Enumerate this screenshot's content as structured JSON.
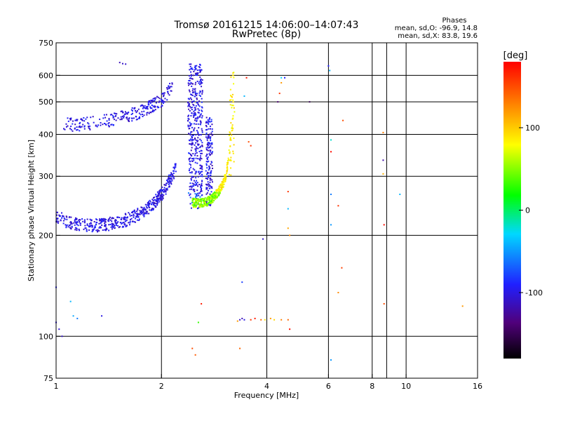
{
  "chart_data": {
    "type": "scatter",
    "title": "Tromsø 20161215 14:06:00–14:07:43",
    "subtitle": "RwPretec (8p)",
    "xlabel": "Frequency [MHz]",
    "ylabel": "Stationary phase Virtual Height [km]",
    "x_scale": "log",
    "y_scale": "log",
    "xlim": [
      1,
      16
    ],
    "ylim": [
      75,
      750
    ],
    "x_ticks": [
      "1",
      "2",
      "4",
      "6",
      "8",
      "10",
      "16"
    ],
    "y_ticks": [
      "75",
      "100",
      "200",
      "300",
      "400",
      "500",
      "600",
      "750"
    ],
    "x_grid": [
      1,
      2,
      4,
      6,
      8,
      10,
      16
    ],
    "y_grid": [
      200,
      300,
      400,
      500,
      600
    ],
    "grid": true,
    "info": {
      "title": "Phases",
      "line1": "mean, sd,O: -96.9, 14.8",
      "line2": "mean, sd,X:  83.8, 19.6"
    },
    "colorbar": {
      "label": "[deg]",
      "range": [
        -180,
        180
      ],
      "ticks": [
        {
          "value": 100,
          "label": "100"
        },
        {
          "value": 0,
          "label": "0"
        },
        {
          "value": -100,
          "label": "-100"
        }
      ]
    },
    "o_trace_lower": [
      [
        1.0,
        230
      ],
      [
        1.05,
        222
      ],
      [
        1.1,
        218
      ],
      [
        1.2,
        215
      ],
      [
        1.3,
        214
      ],
      [
        1.4,
        216
      ],
      [
        1.5,
        219
      ],
      [
        1.6,
        223
      ],
      [
        1.7,
        230
      ],
      [
        1.8,
        238
      ],
      [
        1.9,
        250
      ],
      [
        2.0,
        265
      ],
      [
        2.05,
        275
      ],
      [
        2.1,
        290
      ],
      [
        2.15,
        300
      ],
      [
        2.2,
        320
      ]
    ],
    "o_trace_upper": [
      [
        1.05,
        430
      ],
      [
        1.1,
        428
      ],
      [
        1.2,
        430
      ],
      [
        1.3,
        435
      ],
      [
        1.4,
        440
      ],
      [
        1.5,
        447
      ],
      [
        1.6,
        455
      ],
      [
        1.7,
        463
      ],
      [
        1.8,
        475
      ],
      [
        1.9,
        490
      ],
      [
        2.0,
        505
      ],
      [
        2.05,
        520
      ],
      [
        2.1,
        540
      ],
      [
        2.15,
        565
      ]
    ],
    "o_cusp": {
      "f_min": 2.38,
      "f_max": 2.62,
      "h_min": 240,
      "h_max": 650
    },
    "x_trace": [
      [
        2.45,
        250
      ],
      [
        2.6,
        250
      ],
      [
        2.7,
        252
      ],
      [
        2.8,
        258
      ],
      [
        2.9,
        268
      ],
      [
        3.0,
        285
      ],
      [
        3.05,
        300
      ],
      [
        3.1,
        330
      ],
      [
        3.15,
        380
      ],
      [
        3.2,
        450
      ],
      [
        3.22,
        520
      ],
      [
        3.22,
        600
      ]
    ],
    "clusters": [
      {
        "f": 1.55,
        "h": 650,
        "phase": -110
      },
      {
        "f": 1.52,
        "h": 655,
        "phase": -115
      },
      {
        "f": 1.58,
        "h": 648,
        "phase": -108
      },
      {
        "f": 1.0,
        "h": 140,
        "phase": -90
      },
      {
        "f": 1.0,
        "h": 110,
        "phase": -100
      },
      {
        "f": 1.02,
        "h": 105,
        "phase": -105
      },
      {
        "f": 1.04,
        "h": 100,
        "phase": -110
      },
      {
        "f": 1.1,
        "h": 127,
        "phase": -40
      },
      {
        "f": 1.12,
        "h": 115,
        "phase": -45
      },
      {
        "f": 1.15,
        "h": 113,
        "phase": -60
      },
      {
        "f": 1.35,
        "h": 115,
        "phase": -100
      },
      {
        "f": 2.6,
        "h": 125,
        "phase": 170
      },
      {
        "f": 2.55,
        "h": 110,
        "phase": 30
      },
      {
        "f": 2.45,
        "h": 92,
        "phase": 150
      },
      {
        "f": 2.5,
        "h": 88,
        "phase": 145
      },
      {
        "f": 3.35,
        "h": 112,
        "phase": -110
      },
      {
        "f": 3.4,
        "h": 113,
        "phase": -115
      },
      {
        "f": 3.45,
        "h": 112,
        "phase": -100
      },
      {
        "f": 3.3,
        "h": 111,
        "phase": 120
      },
      {
        "f": 3.6,
        "h": 112,
        "phase": 160
      },
      {
        "f": 3.7,
        "h": 113,
        "phase": 170
      },
      {
        "f": 3.85,
        "h": 112,
        "phase": 140
      },
      {
        "f": 3.95,
        "h": 112,
        "phase": 90
      },
      {
        "f": 4.1,
        "h": 113,
        "phase": 120
      },
      {
        "f": 4.2,
        "h": 112,
        "phase": 95
      },
      {
        "f": 4.4,
        "h": 112,
        "phase": 130
      },
      {
        "f": 4.6,
        "h": 112,
        "phase": 140
      },
      {
        "f": 4.65,
        "h": 105,
        "phase": 175
      },
      {
        "f": 3.4,
        "h": 145,
        "phase": -80
      },
      {
        "f": 3.35,
        "h": 92,
        "phase": 140
      },
      {
        "f": 3.55,
        "h": 380,
        "phase": 150
      },
      {
        "f": 3.6,
        "h": 370,
        "phase": 160
      },
      {
        "f": 3.5,
        "h": 590,
        "phase": 170
      },
      {
        "f": 3.45,
        "h": 520,
        "phase": -40
      },
      {
        "f": 4.3,
        "h": 500,
        "phase": -140
      },
      {
        "f": 4.35,
        "h": 530,
        "phase": 160
      },
      {
        "f": 4.4,
        "h": 570,
        "phase": 120
      },
      {
        "f": 4.5,
        "h": 590,
        "phase": -90
      },
      {
        "f": 4.4,
        "h": 590,
        "phase": -30
      },
      {
        "f": 4.6,
        "h": 270,
        "phase": 160
      },
      {
        "f": 4.6,
        "h": 240,
        "phase": -40
      },
      {
        "f": 4.65,
        "h": 200,
        "phase": 125
      },
      {
        "f": 4.6,
        "h": 210,
        "phase": 115
      },
      {
        "f": 3.9,
        "h": 195,
        "phase": -110
      },
      {
        "f": 5.3,
        "h": 500,
        "phase": -150
      },
      {
        "f": 6.0,
        "h": 640,
        "phase": -90
      },
      {
        "f": 6.05,
        "h": 620,
        "phase": -40
      },
      {
        "f": 6.1,
        "h": 385,
        "phase": -20
      },
      {
        "f": 6.1,
        "h": 355,
        "phase": 175
      },
      {
        "f": 6.1,
        "h": 265,
        "phase": -60
      },
      {
        "f": 6.1,
        "h": 215,
        "phase": -50
      },
      {
        "f": 6.4,
        "h": 245,
        "phase": 160
      },
      {
        "f": 6.6,
        "h": 440,
        "phase": 150
      },
      {
        "f": 6.55,
        "h": 160,
        "phase": 155
      },
      {
        "f": 6.4,
        "h": 135,
        "phase": 125
      },
      {
        "f": 6.1,
        "h": 85,
        "phase": -50
      },
      {
        "f": 8.6,
        "h": 335,
        "phase": -120
      },
      {
        "f": 8.6,
        "h": 305,
        "phase": 110
      },
      {
        "f": 8.6,
        "h": 405,
        "phase": 130
      },
      {
        "f": 8.65,
        "h": 215,
        "phase": 175
      },
      {
        "f": 8.65,
        "h": 125,
        "phase": 150
      },
      {
        "f": 9.6,
        "h": 265,
        "phase": -40
      },
      {
        "f": 14.5,
        "h": 123,
        "phase": 120
      }
    ]
  }
}
